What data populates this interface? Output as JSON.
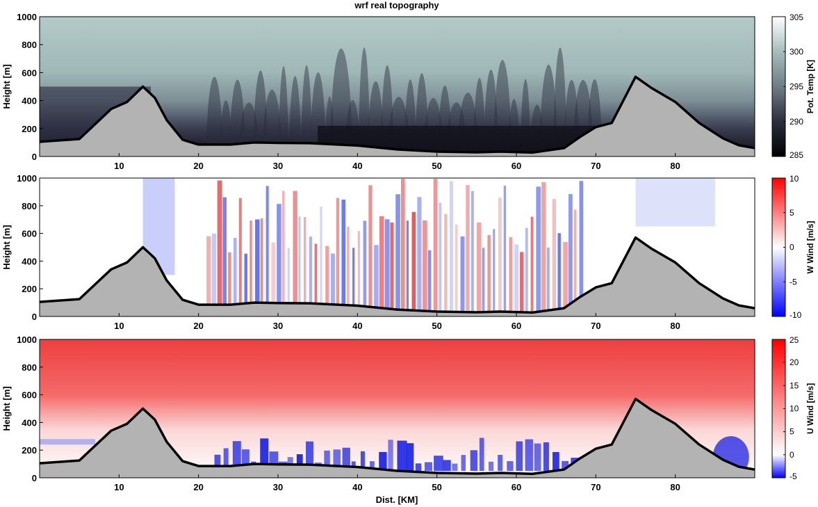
{
  "title": "wrf real topography",
  "xlabel": "Dist. [KM]",
  "x_ticks": [
    10,
    20,
    30,
    40,
    50,
    60,
    70,
    80
  ],
  "y_ticks": [
    0,
    200,
    400,
    600,
    800,
    1000
  ],
  "chart_data": [
    {
      "type": "heatmap",
      "title": "wrf real topography",
      "ylabel": "Height [m]",
      "xlim": [
        0,
        90
      ],
      "ylim": [
        0,
        1000
      ],
      "colorbar": {
        "label": "Pot. Temp [K]",
        "range": [
          285,
          305
        ],
        "ticks": [
          285,
          290,
          295,
          300,
          305
        ],
        "colormap": "bone (black to light gray-green)"
      },
      "topography_km_m": [
        [
          0,
          105
        ],
        [
          5,
          125
        ],
        [
          9,
          340
        ],
        [
          11,
          390
        ],
        [
          13,
          500
        ],
        [
          14.5,
          420
        ],
        [
          16,
          260
        ],
        [
          18,
          120
        ],
        [
          20,
          85
        ],
        [
          24,
          85
        ],
        [
          27,
          100
        ],
        [
          30,
          97
        ],
        [
          34,
          95
        ],
        [
          40,
          78
        ],
        [
          45,
          50
        ],
        [
          50,
          35
        ],
        [
          55,
          30
        ],
        [
          58,
          35
        ],
        [
          62,
          28
        ],
        [
          66,
          60
        ],
        [
          68,
          140
        ],
        [
          70,
          210
        ],
        [
          72,
          240
        ],
        [
          75,
          570
        ],
        [
          77,
          490
        ],
        [
          80,
          390
        ],
        [
          83,
          240
        ],
        [
          86,
          130
        ],
        [
          88,
          80
        ],
        [
          90,
          60
        ]
      ]
    },
    {
      "type": "heatmap",
      "ylabel": "Height [m]",
      "xlim": [
        0,
        90
      ],
      "ylim": [
        0,
        1000
      ],
      "colorbar": {
        "label": "W Wind [m/s]",
        "range": [
          -10,
          10
        ],
        "ticks": [
          -10,
          -5,
          0,
          5,
          10
        ],
        "colormap": "blue-white-red"
      }
    },
    {
      "type": "heatmap",
      "xlabel": "Dist. [KM]",
      "ylabel": "Height [m]",
      "xlim": [
        0,
        90
      ],
      "ylim": [
        0,
        1000
      ],
      "colorbar": {
        "label": "U Wind [m/s]",
        "range": [
          -5,
          25
        ],
        "ticks": [
          -5,
          0,
          5,
          10,
          15,
          20,
          25
        ],
        "colormap": "blue-white-red"
      }
    }
  ]
}
